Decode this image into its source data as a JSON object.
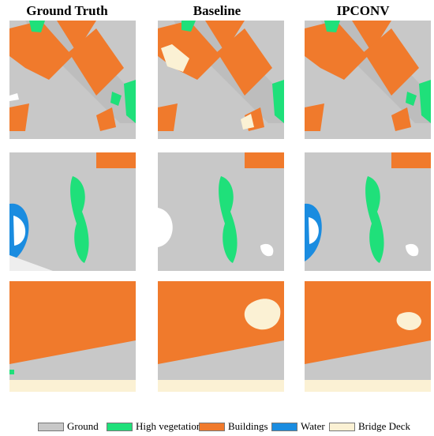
{
  "columns": [
    {
      "title": "Ground Truth"
    },
    {
      "title": "Baseline"
    },
    {
      "title": "IPCONV"
    }
  ],
  "legend": [
    {
      "label": "Ground",
      "color": "#c8c8c8"
    },
    {
      "label": "High vegetation",
      "color": "#1fe07a"
    },
    {
      "label": "Buildings",
      "color": "#f07a2c"
    },
    {
      "label": "Water",
      "color": "#1a8ce0"
    },
    {
      "label": "Bridge Deck",
      "color": "#fbf1d4"
    }
  ],
  "colors": {
    "ground": "#c8c8c8",
    "vegetation": "#1fe07a",
    "buildings": "#f07a2c",
    "water": "#1a8ce0",
    "bridge": "#fbf1d4",
    "unlabeled": "#ffffff"
  }
}
